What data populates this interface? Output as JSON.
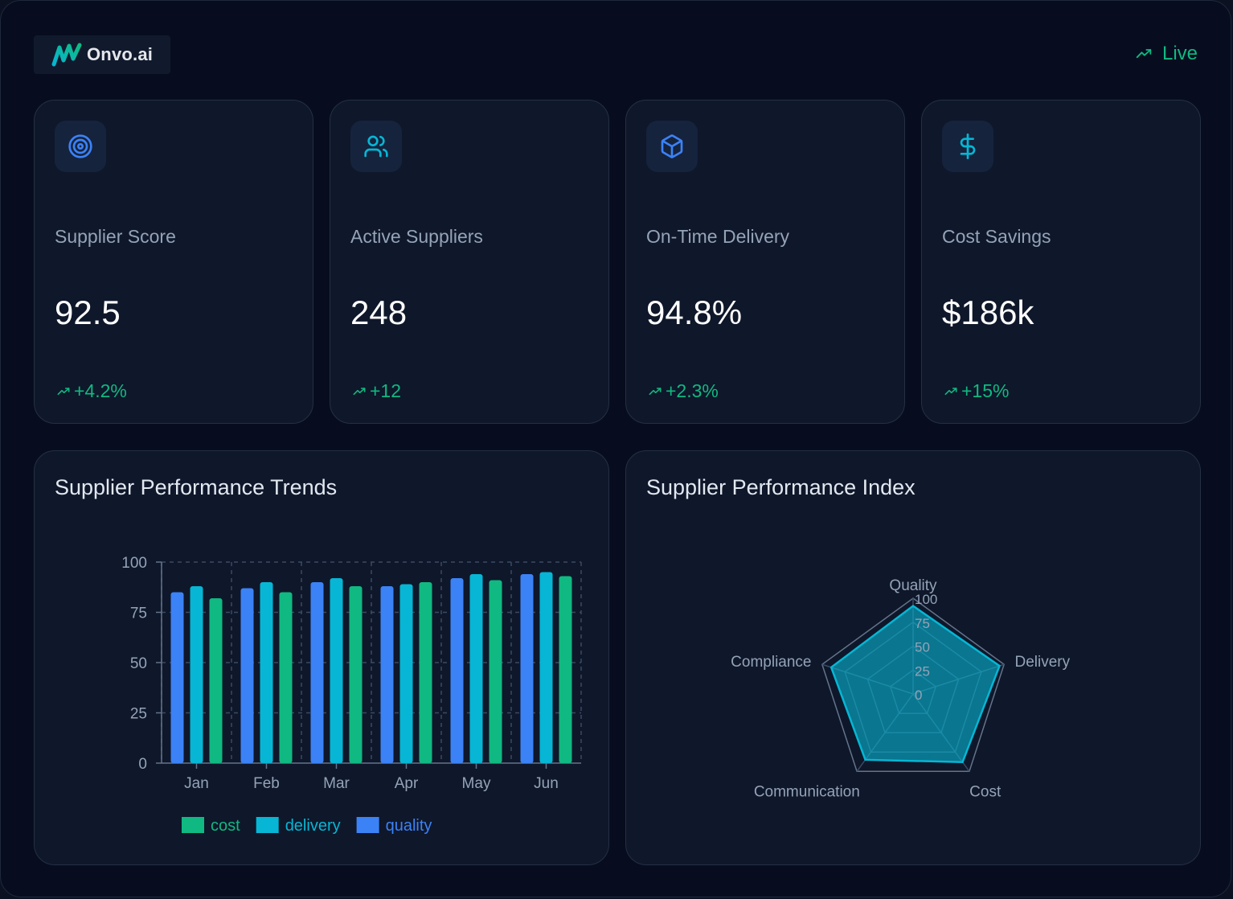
{
  "brand": {
    "name": "Onvo.ai",
    "logo_icon": "onvo-logo-icon"
  },
  "status": {
    "label": "Live",
    "icon": "trending-up-icon",
    "color": "#10b981"
  },
  "stats": [
    {
      "label": "Supplier Score",
      "value": "92.5",
      "change": "+4.2%",
      "icon": "target-icon"
    },
    {
      "label": "Active Suppliers",
      "value": "248",
      "change": "+12",
      "icon": "users-icon"
    },
    {
      "label": "On-Time Delivery",
      "value": "94.8%",
      "change": "+2.3%",
      "icon": "package-icon"
    },
    {
      "label": "Cost Savings",
      "value": "$186k",
      "change": "+15%",
      "icon": "dollar-icon"
    }
  ],
  "colors": {
    "quality": "#3b82f6",
    "delivery": "#06b6d4",
    "cost": "#10b981",
    "radar": "#06b6d4"
  },
  "trends": {
    "title": "Supplier Performance Trends"
  },
  "index": {
    "title": "Supplier Performance Index"
  },
  "chart_data": [
    {
      "type": "bar",
      "title": "Supplier Performance Trends",
      "categories": [
        "Jan",
        "Feb",
        "Mar",
        "Apr",
        "May",
        "Jun"
      ],
      "series": [
        {
          "name": "quality",
          "values": [
            85,
            87,
            90,
            88,
            92,
            94
          ]
        },
        {
          "name": "delivery",
          "values": [
            88,
            90,
            92,
            89,
            94,
            95
          ]
        },
        {
          "name": "cost",
          "values": [
            82,
            85,
            88,
            90,
            91,
            93
          ]
        }
      ],
      "legend_order": [
        "cost",
        "delivery",
        "quality"
      ],
      "yticks": [
        0,
        25,
        50,
        75,
        100
      ],
      "ylim": [
        0,
        100
      ],
      "grid": true,
      "legend": "bottom"
    },
    {
      "type": "radar",
      "title": "Supplier Performance Index",
      "axes": [
        "Quality",
        "Delivery",
        "Cost",
        "Communication",
        "Compliance"
      ],
      "values": [
        92,
        95,
        88,
        85,
        90
      ],
      "rticks": [
        0,
        25,
        50,
        75,
        100
      ],
      "rlim": [
        0,
        100
      ]
    }
  ]
}
